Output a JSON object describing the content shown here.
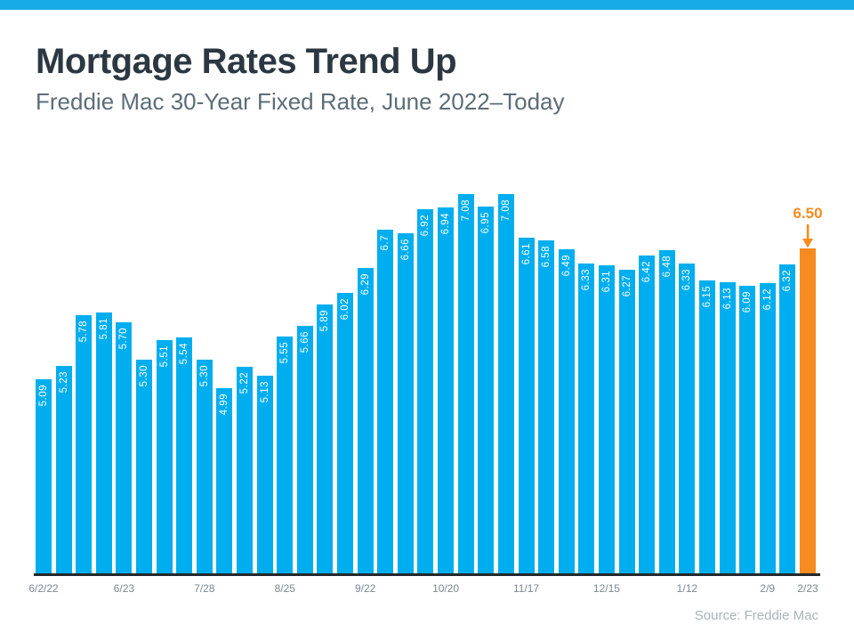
{
  "topbar": {
    "color": "#17ACE8"
  },
  "header": {
    "title": "Mortgage Rates Trend Up",
    "subtitle": "Freddie Mac 30-Year Fixed Rate, June 2022–Today"
  },
  "chart_data": {
    "type": "bar",
    "title": "Mortgage Rates Trend Up",
    "subtitle": "Freddie Mac 30-Year Fixed Rate, June 2022–Today",
    "series_name": "Freddie Mac 30-Year Fixed Rate (%)",
    "values": [
      5.09,
      5.23,
      5.78,
      5.81,
      5.7,
      5.3,
      5.51,
      5.54,
      5.3,
      4.99,
      5.22,
      5.13,
      5.55,
      5.66,
      5.89,
      6.02,
      6.29,
      6.7,
      6.66,
      6.92,
      6.94,
      7.08,
      6.95,
      7.08,
      6.61,
      6.58,
      6.49,
      6.33,
      6.31,
      6.27,
      6.42,
      6.48,
      6.33,
      6.15,
      6.13,
      6.09,
      6.12,
      6.32,
      6.5
    ],
    "bar_value_labels": [
      "5.09",
      "5.23",
      "5.78",
      "5.81",
      "5.70",
      "5.30",
      "5.51",
      "5.54",
      "5.30",
      "4.99",
      "5.22",
      "5.13",
      "5.55",
      "5.66",
      "5.89",
      "6.02",
      "6.29",
      "6.7",
      "6.66",
      "6.92",
      "6.94",
      "7.08",
      "6.95",
      "7.08",
      "6.61",
      "6.58",
      "6.49",
      "6.33",
      "6.31",
      "6.27",
      "6.42",
      "6.48",
      "6.33",
      "6.15",
      "6.13",
      "6.09",
      "6.12",
      "6.32",
      ""
    ],
    "x_ticks": [
      {
        "index": 0,
        "label": "6/2/22"
      },
      {
        "index": 4,
        "label": "6/23"
      },
      {
        "index": 8,
        "label": "7/28"
      },
      {
        "index": 12,
        "label": "8/25"
      },
      {
        "index": 16,
        "label": "9/22"
      },
      {
        "index": 20,
        "label": "10/20"
      },
      {
        "index": 24,
        "label": "11/17"
      },
      {
        "index": 28,
        "label": "12/15"
      },
      {
        "index": 32,
        "label": "1/12"
      },
      {
        "index": 36,
        "label": "2/9"
      },
      {
        "index": 38,
        "label": "2/23"
      }
    ],
    "ylim": [
      3.0,
      7.5
    ],
    "baseline_value": 3.0,
    "grid": false,
    "legend": false,
    "value_labels_inside_bars": true,
    "bar_color": "#00AEEF",
    "highlight": {
      "index": 38,
      "color": "#F68C1F",
      "callout_label": "6.50"
    }
  },
  "footer": {
    "source": "Source: Freddie Mac"
  }
}
